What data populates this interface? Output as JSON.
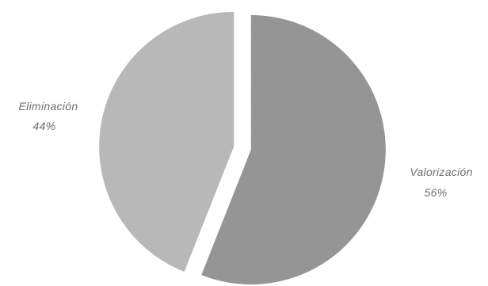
{
  "chart_data": {
    "type": "pie",
    "categories": [
      "Valorización",
      "Eliminación"
    ],
    "values": [
      56,
      44
    ],
    "value_labels": [
      "56%",
      "44%"
    ],
    "colors": [
      "#a3a3a3",
      "#c9c9c9"
    ],
    "exploded": true
  }
}
